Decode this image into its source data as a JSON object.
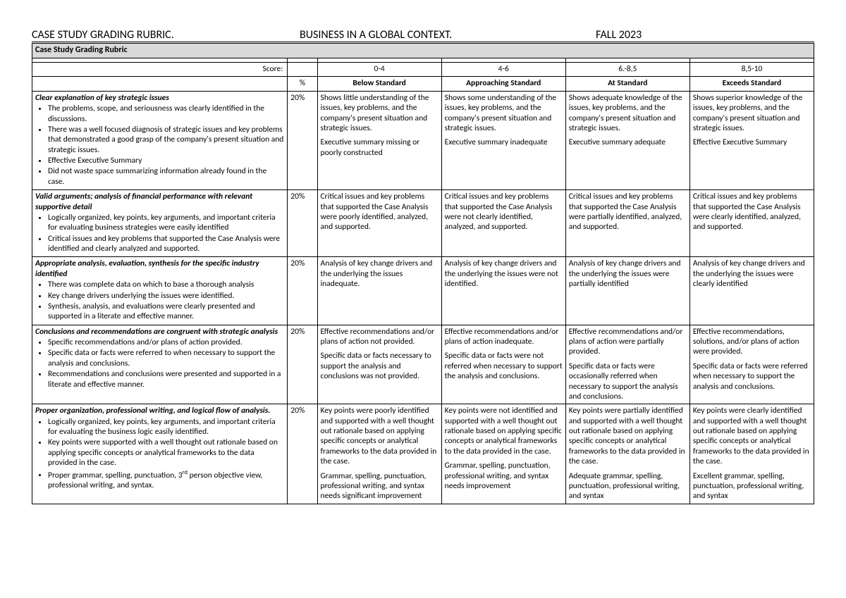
{
  "header": {
    "left": "CASE STUDY GRADING RUBRIC.",
    "mid": "BUSINESS IN A GLOBAL CONTEXT.",
    "right": "FALL 2023"
  },
  "table_title": "Case Study Grading Rubric",
  "score_label": "Score:",
  "pct_label": "%",
  "levels": {
    "ranges": [
      "0-4",
      "4-6",
      "6.-8,5",
      "8,5-10"
    ],
    "names": [
      "Below Standard",
      "Approaching Standard",
      "At Standard",
      "Exceeds Standard"
    ]
  },
  "rows": [
    {
      "criterion_title": "Clear explanation of key strategic issues",
      "bullets": [
        "The problems, scope, and seriousness was clearly identified in the discussions.",
        "There was a well focused diagnosis of strategic issues and key problems that demonstrated a good grasp of the company's present situation and strategic issues.",
        "Effective Executive Summary",
        "Did not waste space summarizing information already found in the case."
      ],
      "pct": "20%",
      "cells": [
        [
          "Shows little understanding of the issues, key problems, and the company's present situation and strategic issues.",
          "Executive summary missing or poorly constructed"
        ],
        [
          "Shows some understanding of the issues, key problems, and the company's present situation and strategic issues.",
          "Executive summary inadequate"
        ],
        [
          "Shows adequate knowledge of the issues, key problems, and the company's present situation and strategic issues.",
          "Executive summary adequate"
        ],
        [
          "Shows superior knowledge of the issues, key problems, and the company's present situation and strategic issues.",
          "Effective Executive Summary"
        ]
      ]
    },
    {
      "criterion_title": "Valid arguments; analysis of financial performance with relevant supportive detail",
      "bullets": [
        "Logically organized, key points, key arguments, and important criteria for evaluating business strategies were easily identified",
        "Critical issues and key problems that supported the Case Analysis were identified and clearly analyzed and supported."
      ],
      "pct": "20%",
      "cells": [
        [
          "Critical issues and key problems that supported the Case Analysis were poorly identified, analyzed, and supported."
        ],
        [
          "Critical issues and key problems that supported the Case Analysis were not clearly identified, analyzed, and supported."
        ],
        [
          "Critical issues and key problems that supported the Case Analysis were partially identified, analyzed, and supported."
        ],
        [
          "Critical issues and key problems that supported the Case Analysis were clearly identified, analyzed, and supported."
        ]
      ]
    },
    {
      "criterion_title": "Appropriate analysis, evaluation, synthesis for the specific industry identified",
      "bullets": [
        "There was complete data on which to base a thorough analysis",
        "Key change drivers underlying the issues were identified.",
        "Synthesis, analysis, and evaluations were clearly presented and supported in a literate and effective manner."
      ],
      "pct": "20%",
      "cells": [
        [
          "Analysis of key change drivers and the underlying the issues inadequate."
        ],
        [
          "Analysis of key change drivers and the underlying the issues were not identified."
        ],
        [
          "Analysis of key change drivers and the underlying the issues were partially identified"
        ],
        [
          "Analysis of key change drivers and the underlying the issues were clearly identified"
        ]
      ]
    },
    {
      "criterion_title": "Conclusions and recommendations are congruent with strategic analysis",
      "bullets": [
        "Specific recommendations and/or plans of action provided.",
        "Specific data or facts were referred to when necessary to support the analysis and conclusions.",
        "Recommendations and conclusions were presented and supported in a literate and effective manner."
      ],
      "pct": "20%",
      "cells": [
        [
          "Effective recommendations and/or plans of action not provided.",
          "Specific data or facts necessary to support the analysis and conclusions was not provided."
        ],
        [
          "Effective recommendations and/or plans of action inadequate.",
          "Specific data or facts were not referred when necessary to support the analysis and conclusions."
        ],
        [
          "Effective recommendations and/or plans of action were partially provided.",
          "Specific data or facts were occasionally referred when necessary to support the analysis and conclusions."
        ],
        [
          "Effective recommendations, solutions, and/or plans of action were provided.",
          "Specific data or facts were referred when necessary to support the analysis and conclusions."
        ]
      ]
    },
    {
      "criterion_title": "Proper organization, professional writing, and logical flow of analysis.",
      "bullets": [
        "Logically organized, key points, key arguments, and important criteria for evaluating the business logic easily identified.",
        "Key points were supported with a well thought out rationale based on applying specific concepts or analytical frameworks to the data provided in the case.",
        "Proper grammar, spelling, punctuation, 3<sup>rd</sup> person objective view, professional writing, and syntax."
      ],
      "pct": "20%",
      "cells": [
        [
          "Key points were poorly identified and supported with a well thought out rationale based on applying specific concepts or analytical frameworks to the data provided in the case.",
          "Grammar, spelling, punctuation, professional writing, and syntax needs significant improvement"
        ],
        [
          "Key points were not identified and supported with a well thought out rationale based on applying specific concepts or analytical frameworks to the data provided in the case.",
          "Grammar, spelling, punctuation, professional writing, and syntax needs improvement"
        ],
        [
          "Key points were partially identified and supported with a well thought out rationale based on applying specific concepts or analytical frameworks to the data provided in the case.",
          "Adequate grammar, spelling, punctuation, professional writing, and syntax"
        ],
        [
          "Key points were clearly identified and supported with a well thought out rationale based on applying specific concepts or analytical frameworks to the data provided in the case.",
          "Excellent grammar, spelling, punctuation, professional writing, and syntax"
        ]
      ]
    }
  ]
}
